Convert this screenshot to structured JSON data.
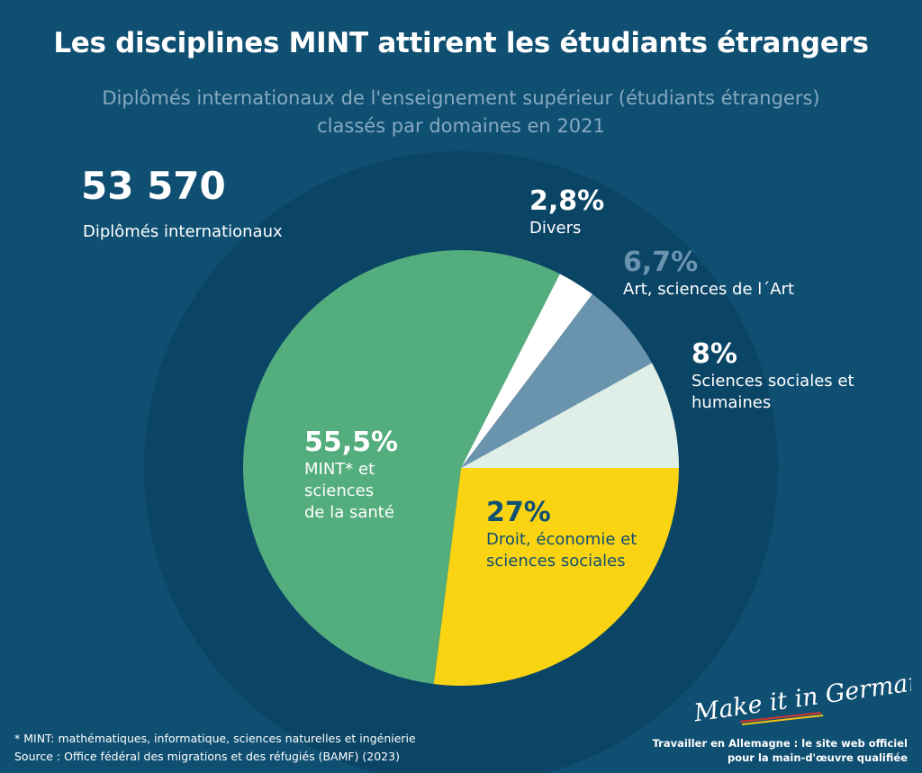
{
  "header": {
    "title": "Les disciplines MINT attirent les étudiants étrangers",
    "subtitle_line1": "Diplômés internationaux de l'enseignement supérieur (étudiants étrangers)",
    "subtitle_line2": "classés par domaines en 2021"
  },
  "total": {
    "value": "53 570",
    "label": "Diplômés internationaux"
  },
  "chart_data": {
    "type": "pie",
    "title": "Les disciplines MINT attirent les étudiants étrangers",
    "subtitle": "Diplômés internationaux de l'enseignement supérieur (étudiants étrangers) classés par domaines en 2021",
    "unit": "%",
    "slices": [
      {
        "label": "Droit, économie et sciences sociales",
        "value": 27,
        "display": "27%",
        "color": "#fad412"
      },
      {
        "label": "MINT* et sciences de la santé",
        "value": 55.5,
        "display": "55,5%",
        "color": "#53ad7d"
      },
      {
        "label": "Divers",
        "value": 2.8,
        "display": "2,8%",
        "color": "#ffffff"
      },
      {
        "label": "Art, sciences de l´Art",
        "value": 6.7,
        "display": "6,7%",
        "color": "#6a94ae"
      },
      {
        "label": "Sciences sociales et humaines",
        "value": 8,
        "display": "8%",
        "color": "#dfeee6"
      }
    ]
  },
  "labels": {
    "divers": {
      "pct": "2,8%",
      "name": "Divers"
    },
    "art": {
      "pct": "6,7%",
      "name": "Art, sciences de l´Art"
    },
    "sciences_sociales": {
      "pct": "8%",
      "name1": "Sciences sociales et",
      "name2": "humaines"
    },
    "droit": {
      "pct": "27%",
      "name1": "Droit, économie et",
      "name2": "sciences sociales"
    },
    "mint": {
      "pct": "55,5%",
      "name1": "MINT* et",
      "name2": "sciences",
      "name3": "de la santé"
    }
  },
  "footer": {
    "footnote": "* MINT: mathématiques, informatique, sciences naturelles et ingénierie",
    "source": "Source : Office fédéral des migrations et des réfugiés (BAMF) (2023)",
    "brand_logo": "Make it in Germany",
    "brand_line1": "Travailler en Allemagne : le site web officiel",
    "brand_line2": "pour la main-d'œuvre qualifiée"
  },
  "colors": {
    "background": "#0f4f72",
    "halo": "#0b4566",
    "subtitle": "#86a9c0",
    "art_label": "#6a94ae",
    "droit_label": "#0f4f72"
  }
}
